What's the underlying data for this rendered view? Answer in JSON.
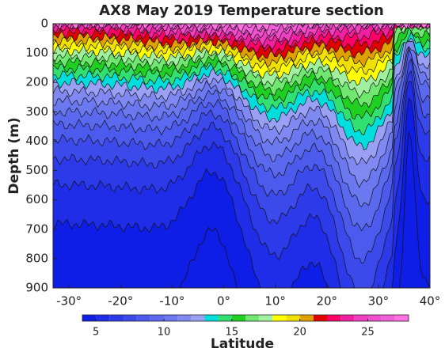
{
  "chart_data": {
    "type": "contour",
    "title": "AX8 May 2019 Temperature section",
    "ylabel": "Depth (m)",
    "xlabel": "Latitude",
    "xlim": [
      -33.1,
      40
    ],
    "xticks": [
      {
        "value": -30,
        "label": "-30°"
      },
      {
        "value": -20,
        "label": "-20°"
      },
      {
        "value": -10,
        "label": "-10°"
      },
      {
        "value": 0,
        "label": "0°"
      },
      {
        "value": 10,
        "label": "10°"
      },
      {
        "value": 20,
        "label": "20°"
      },
      {
        "value": 30,
        "label": "30°"
      },
      {
        "value": 40,
        "label": "40°"
      }
    ],
    "ylim": [
      0,
      900
    ],
    "yticks": [
      0,
      100,
      200,
      300,
      400,
      500,
      600,
      700,
      800,
      900
    ],
    "invert_y": true,
    "clim": [
      4,
      28
    ],
    "cticks": [
      5,
      10,
      15,
      20,
      25
    ],
    "levels": [
      4,
      5,
      6,
      7,
      8,
      9,
      10,
      11,
      12,
      13,
      14,
      15,
      16,
      17,
      18,
      19,
      20,
      21,
      22,
      23,
      24,
      25,
      26,
      27
    ],
    "colors": [
      "#0f1ee6",
      "#1f2ce8",
      "#2d3aea",
      "#3d4aeb",
      "#4c5aee",
      "#5b69ef",
      "#6b78f0",
      "#8088f2",
      "#9aa0f4",
      "#00dddd",
      "#30e070",
      "#20d020",
      "#70e870",
      "#a0f0a0",
      "#ffff00",
      "#f0e000",
      "#e0a000",
      "#e00000",
      "#ff0066",
      "#f020a0",
      "#f040c0",
      "#f050d0",
      "#f060d8",
      "#ff70e0"
    ]
  }
}
